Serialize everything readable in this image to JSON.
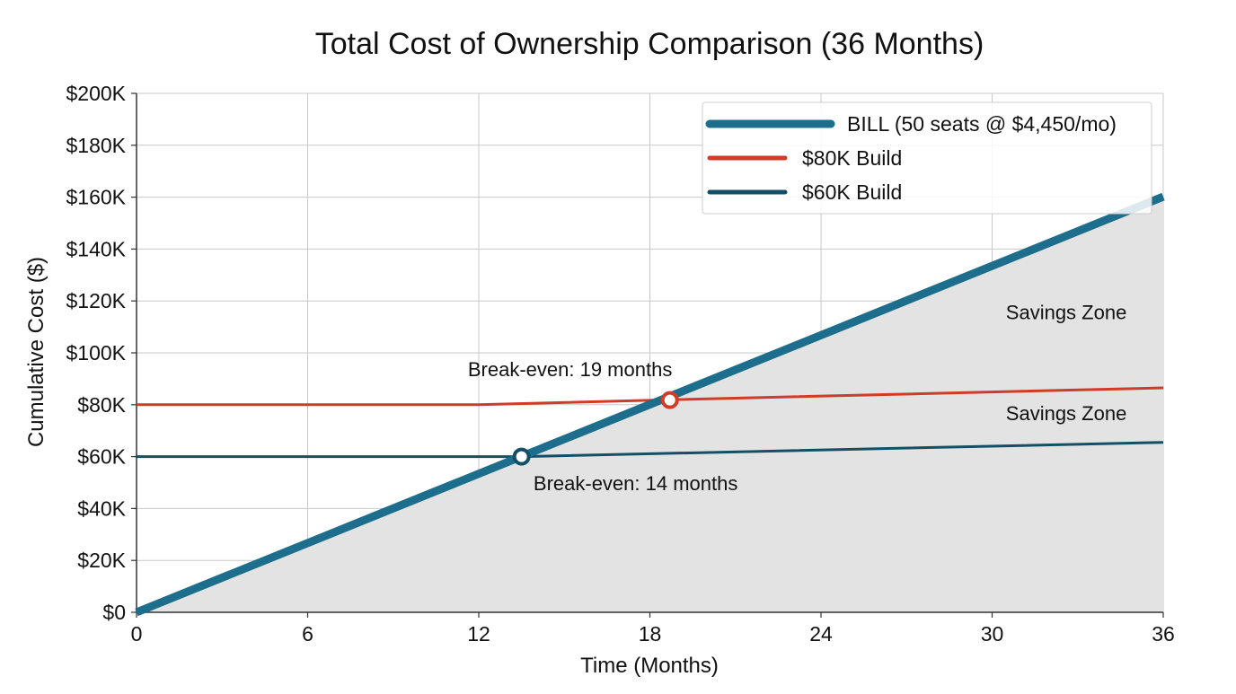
{
  "chart_data": {
    "type": "line",
    "title": "Total Cost of Ownership Comparison (36 Months)",
    "xlabel": "Time (Months)",
    "ylabel": "Cumulative Cost ($)",
    "xlim": [
      0,
      36
    ],
    "ylim": [
      0,
      200000
    ],
    "x_ticks": [
      0,
      6,
      12,
      18,
      24,
      30,
      36
    ],
    "x_tick_labels": [
      "0",
      "6",
      "12",
      "18",
      "24",
      "30",
      "36"
    ],
    "y_ticks": [
      0,
      20000,
      40000,
      60000,
      80000,
      100000,
      120000,
      140000,
      160000,
      180000,
      200000
    ],
    "y_tick_labels": [
      "$0",
      "$20K",
      "$40K",
      "$60K",
      "$80K",
      "$100K",
      "$120K",
      "$140K",
      "$160K",
      "$180K",
      "$200K"
    ],
    "grid": true,
    "legend_position": "top-right",
    "colors": {
      "bill": "#1c6e8c",
      "build80": "#d13b28",
      "build60": "#144f66",
      "fill": "#e3e3e3"
    },
    "series": [
      {
        "name": "BILL (50 seats @ $4,450/mo)",
        "color": "#1c6e8c",
        "x": [
          0,
          36
        ],
        "y": [
          0,
          160200
        ]
      },
      {
        "name": "$80K Build",
        "color": "#d13b28",
        "x": [
          0,
          12,
          19,
          36
        ],
        "y": [
          80000,
          80000,
          82000,
          86500
        ]
      },
      {
        "name": "$60K Build",
        "color": "#144f66",
        "x": [
          0,
          13.5,
          36
        ],
        "y": [
          60000,
          60000,
          65500
        ]
      }
    ],
    "markers": [
      {
        "x": 18.7,
        "y": 81800,
        "color": "#d13b28"
      },
      {
        "x": 13.5,
        "y": 60000,
        "color": "#144f66"
      }
    ],
    "annotations": [
      {
        "text": "Break-even: 19 months",
        "x": 15.2,
        "y": 91000
      },
      {
        "text": "Break-even: 14 months",
        "x": 17.5,
        "y": 47000
      },
      {
        "text": "Savings Zone",
        "x": 32.6,
        "y": 113000
      },
      {
        "text": "Savings Zone",
        "x": 32.6,
        "y": 74000
      }
    ]
  }
}
